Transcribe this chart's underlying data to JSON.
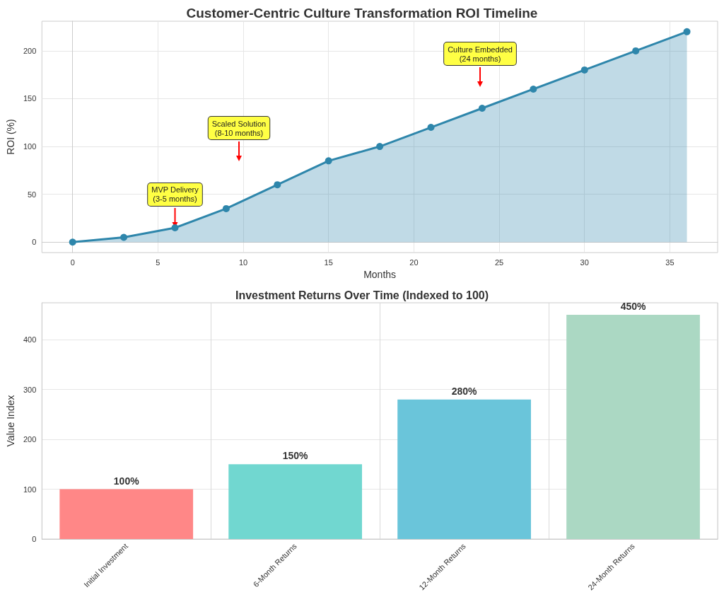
{
  "chart_data": [
    {
      "type": "area",
      "title": "Customer-Centric Culture Transformation ROI Timeline",
      "xlabel": "Months",
      "ylabel": "ROI (%)",
      "x": [
        0,
        3,
        6,
        9,
        12,
        15,
        18,
        21,
        24,
        27,
        30,
        33,
        36
      ],
      "values": [
        0,
        5,
        15,
        35,
        60,
        85,
        100,
        120,
        140,
        160,
        180,
        200,
        220
      ],
      "color": "#2e86ab",
      "xlim": [
        -1.8,
        37.8
      ],
      "xticks": [
        0,
        5,
        10,
        15,
        20,
        25,
        30,
        35
      ],
      "ylim": [
        -11,
        231
      ],
      "yticks": [
        0,
        50,
        100,
        150,
        200
      ],
      "grid": true,
      "marker": "circle",
      "annotations": [
        {
          "text": "MVP Delivery\n(3-5 months)",
          "x": 6,
          "y": 15
        },
        "Scaled Solution\n(8-10 months)",
        "Culture Embedded\n(24 months)"
      ]
    },
    {
      "type": "bar",
      "title": "Investment Returns Over Time (Indexed to 100)",
      "ylabel": "Value Index",
      "categories": [
        "Initial Investment",
        "6-Month Returns",
        "12-Month Returns",
        "24-Month Returns"
      ],
      "values": [
        100,
        150,
        280,
        450
      ],
      "colors": [
        "#ff8787",
        "#71d7d0",
        "#6ac5da",
        "#abd8c3"
      ],
      "value_labels": [
        "100%",
        "150%",
        "280%",
        "450%"
      ],
      "ylim": [
        0,
        474
      ],
      "yticks": [
        0,
        100,
        200,
        300,
        400
      ],
      "grid": true
    }
  ]
}
